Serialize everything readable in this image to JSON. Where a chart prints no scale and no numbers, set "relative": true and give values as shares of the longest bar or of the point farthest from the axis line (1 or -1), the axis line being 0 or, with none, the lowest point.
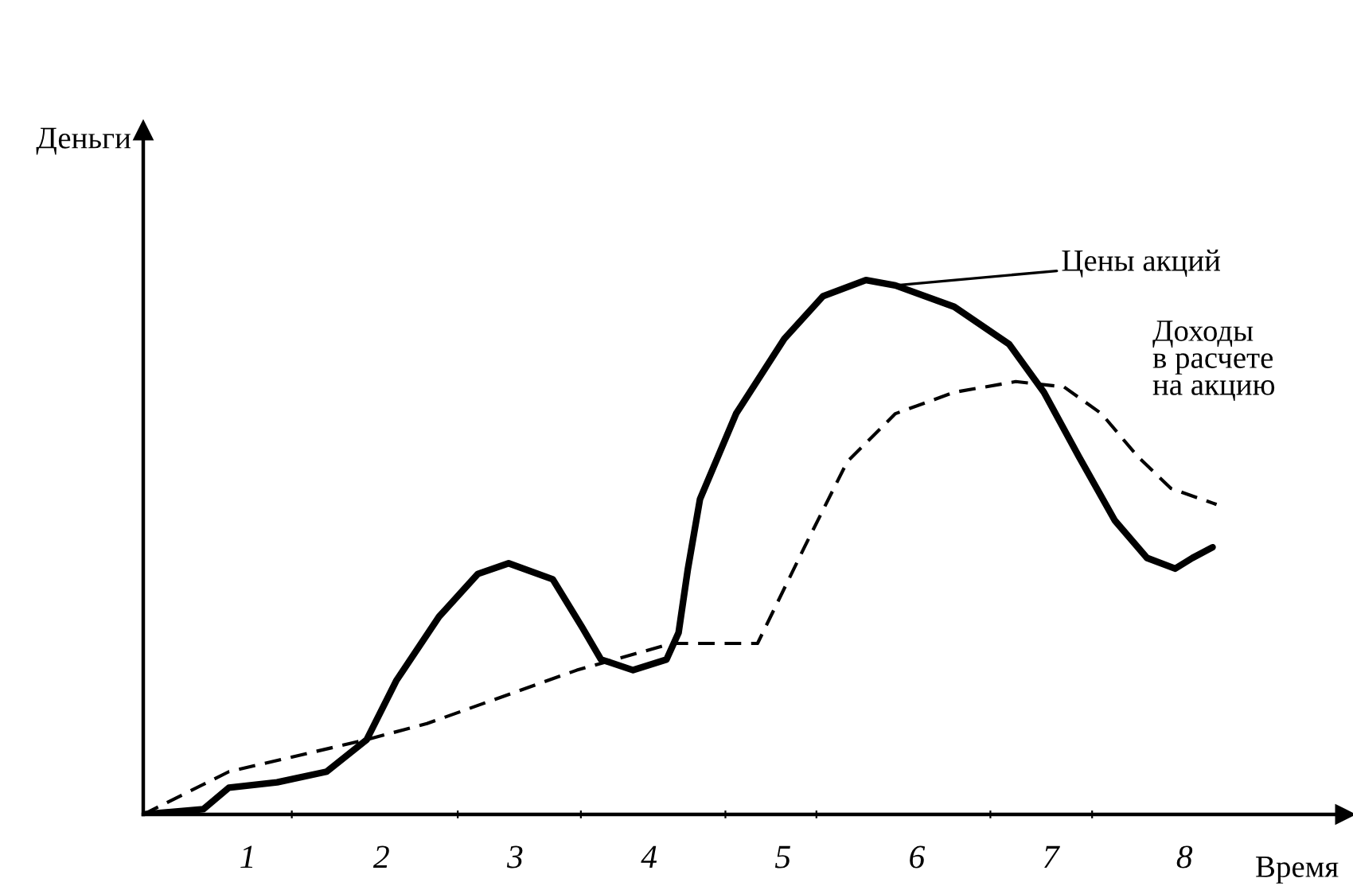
{
  "chart_data": {
    "type": "line",
    "relative": true,
    "xlabel": "Время",
    "ylabel": "Деньги",
    "xlim": [
      0.22,
      9.2
    ],
    "xticks": [
      {
        "value": 1.33,
        "label": null
      },
      {
        "value": 2.57,
        "label": null
      },
      {
        "value": 3.49,
        "label": null
      },
      {
        "value": 4.57,
        "label": null
      },
      {
        "value": 5.25,
        "label": null
      },
      {
        "value": 6.55,
        "label": null
      },
      {
        "value": 7.31,
        "label": null
      },
      1,
      2,
      3,
      4,
      5,
      6,
      7,
      8
    ],
    "grid": false,
    "legend": false,
    "marker": "none",
    "series": [
      {
        "name": "Цены акций",
        "color": "#000000",
        "line_style": "solid",
        "x": [
          0.22,
          0.67,
          0.86,
          1.22,
          1.59,
          1.89,
          2.11,
          2.43,
          2.72,
          2.95,
          3.28,
          3.5,
          3.64,
          3.88,
          4.13,
          4.22,
          4.29,
          4.38,
          4.65,
          5.01,
          5.3,
          5.62,
          5.84,
          6.28,
          6.69,
          6.95,
          7.21,
          7.48,
          7.72,
          7.93,
          8.06,
          8.21
        ],
        "values": [
          0,
          0.01,
          0.05,
          0.06,
          0.08,
          0.14,
          0.25,
          0.37,
          0.45,
          0.47,
          0.44,
          0.35,
          0.29,
          0.27,
          0.29,
          0.34,
          0.46,
          0.59,
          0.75,
          0.89,
          0.97,
          1.0,
          0.99,
          0.95,
          0.88,
          0.79,
          0.67,
          0.55,
          0.48,
          0.46,
          0.48,
          0.5
        ]
      },
      {
        "name": "Доходы\nв расчете\nна акцию",
        "color": "#000000",
        "line_style": "dashed",
        "x": [
          0.22,
          0.86,
          1.89,
          2.34,
          3.46,
          4.17,
          4.81,
          5.16,
          5.48,
          5.84,
          6.28,
          6.74,
          7.1,
          7.38,
          7.65,
          7.9,
          8.24
        ],
        "values": [
          0,
          0.08,
          0.14,
          0.17,
          0.27,
          0.32,
          0.32,
          0.5,
          0.66,
          0.75,
          0.79,
          0.81,
          0.8,
          0.75,
          0.67,
          0.61,
          0.58
        ]
      }
    ]
  }
}
